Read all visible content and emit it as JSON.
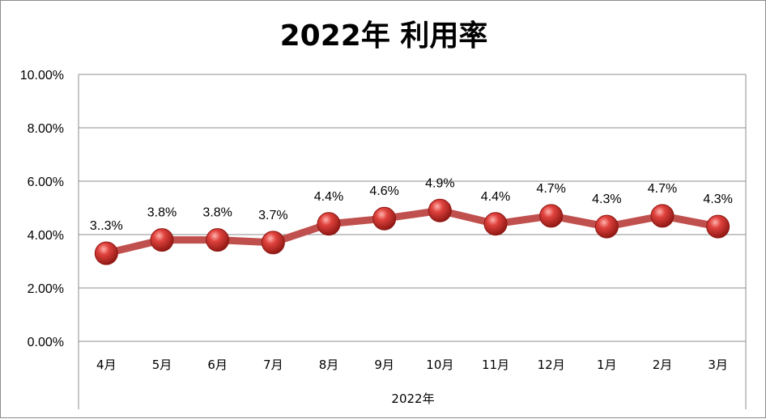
{
  "chart_data": {
    "type": "line",
    "title": "2022年 利用率",
    "xlabel": "2022年",
    "ylabel": "",
    "categories": [
      "4月",
      "5月",
      "6月",
      "7月",
      "8月",
      "9月",
      "10月",
      "11月",
      "12月",
      "1月",
      "2月",
      "3月"
    ],
    "values": [
      3.3,
      3.8,
      3.8,
      3.7,
      4.4,
      4.6,
      4.9,
      4.4,
      4.7,
      4.3,
      4.7,
      4.3
    ],
    "data_labels": [
      "3..3%",
      "3.8%",
      "3.8%",
      "3.7%",
      "4.4%",
      "4.6%",
      "4.9%",
      "4.4%",
      "4.7%",
      "4.3%",
      "4.7%",
      "4.3%"
    ],
    "y_ticks": [
      "0.00%",
      "2.00%",
      "4.00%",
      "6.00%",
      "8.00%",
      "10.00%"
    ],
    "ylim": [
      0,
      10
    ],
    "grid": true,
    "legend": "none",
    "colors": {
      "line": "#c0504d",
      "marker": "#d43a36",
      "grid": "#8c8c8c"
    }
  }
}
